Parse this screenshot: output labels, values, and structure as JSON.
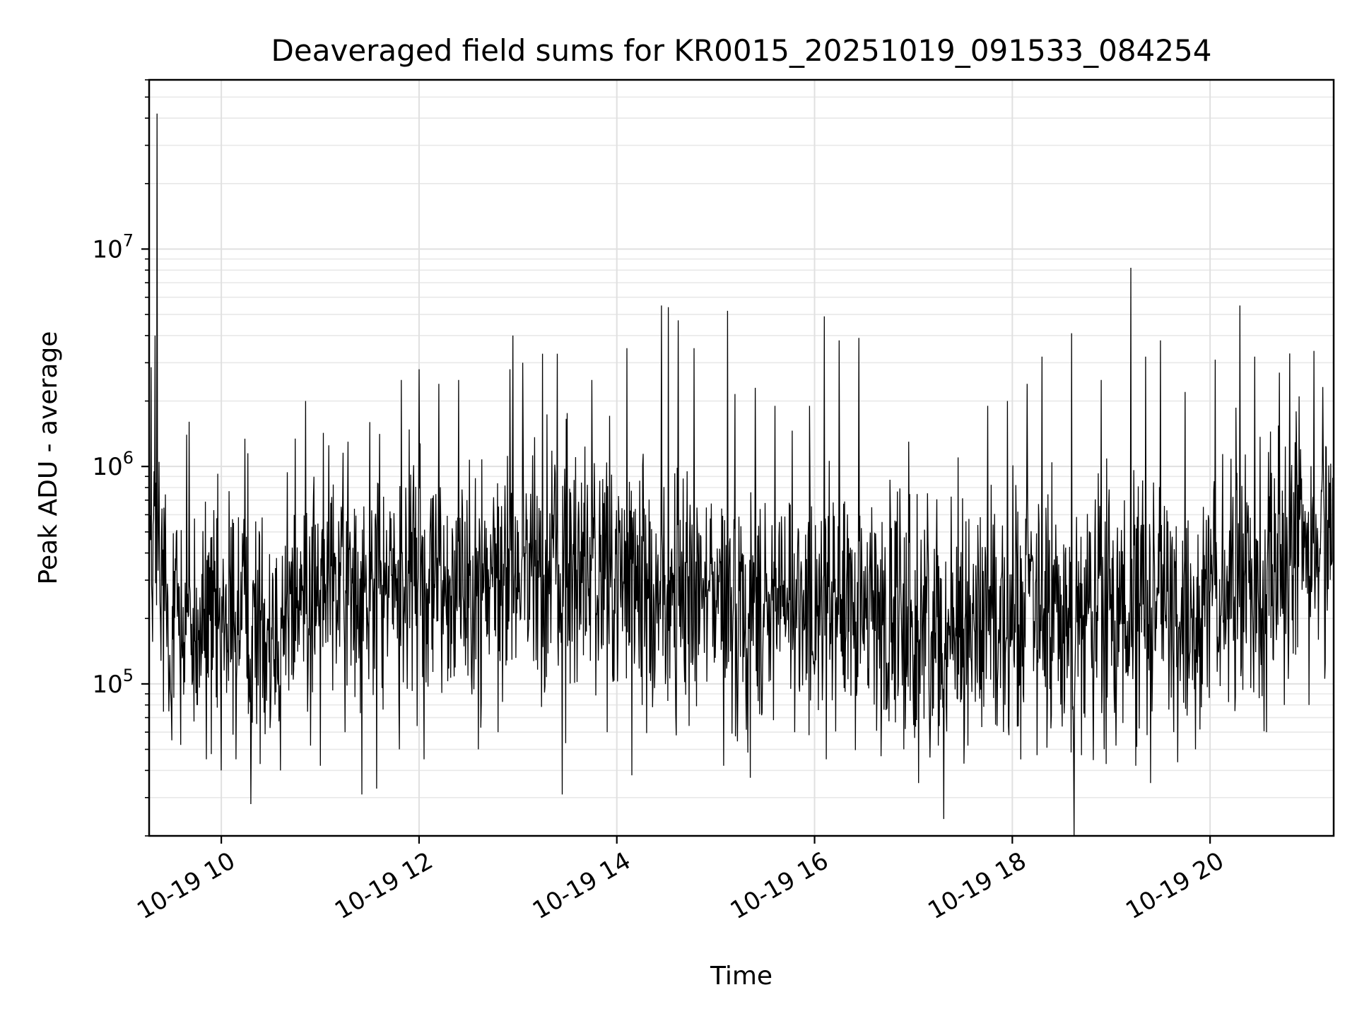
{
  "chart_data": {
    "type": "line",
    "title": "Deaveraged field sums for KR0015_20251019_091533_084254",
    "xlabel": "Time",
    "ylabel": "Peak ADU - average",
    "yscale": "log",
    "xlim": [
      9.27,
      21.25
    ],
    "ylim": [
      20000,
      60000000
    ],
    "grid": true,
    "legend": "none",
    "line_color": "#000000",
    "x_ticks": [
      {
        "value": 10,
        "label": "10-19 10"
      },
      {
        "value": 12,
        "label": "10-19 12"
      },
      {
        "value": 14,
        "label": "10-19 14"
      },
      {
        "value": 16,
        "label": "10-19 16"
      },
      {
        "value": 18,
        "label": "10-19 18"
      },
      {
        "value": 20,
        "label": "10-19 20"
      }
    ],
    "y_major_ticks": [
      {
        "value": 100000,
        "base": "10",
        "exp": "5"
      },
      {
        "value": 1000000,
        "base": "10",
        "exp": "6"
      },
      {
        "value": 10000000,
        "base": "10",
        "exp": "7"
      }
    ],
    "series": [
      {
        "name": "Peak ADU - average",
        "description": "dense noisy time series, sampled envelope",
        "baseline": [
          [
            9.27,
            450000
          ],
          [
            9.5,
            200000
          ],
          [
            10.0,
            180000
          ],
          [
            10.5,
            200000
          ],
          [
            11.0,
            280000
          ],
          [
            11.5,
            290000
          ],
          [
            12.0,
            320000
          ],
          [
            12.5,
            300000
          ],
          [
            13.0,
            330000
          ],
          [
            13.5,
            340000
          ],
          [
            14.0,
            300000
          ],
          [
            14.5,
            250000
          ],
          [
            15.0,
            240000
          ],
          [
            15.5,
            230000
          ],
          [
            16.0,
            230000
          ],
          [
            16.5,
            220000
          ],
          [
            17.0,
            180000
          ],
          [
            17.5,
            180000
          ],
          [
            18.0,
            210000
          ],
          [
            18.5,
            190000
          ],
          [
            19.0,
            200000
          ],
          [
            19.5,
            200000
          ],
          [
            20.0,
            220000
          ],
          [
            20.5,
            350000
          ],
          [
            21.0,
            450000
          ],
          [
            21.25,
            520000
          ]
        ],
        "spikes": [
          [
            9.35,
            42000000
          ],
          [
            9.33,
            4000000
          ],
          [
            9.32,
            950000
          ],
          [
            9.65,
            1400000
          ],
          [
            10.27,
            1150000
          ],
          [
            10.6,
            1100000
          ],
          [
            10.85,
            2000000
          ],
          [
            11.0,
            1150000
          ],
          [
            11.28,
            1300000
          ],
          [
            11.5,
            1600000
          ],
          [
            11.82,
            2500000
          ],
          [
            12.0,
            2800000
          ],
          [
            12.2,
            2400000
          ],
          [
            12.4,
            2500000
          ],
          [
            12.6,
            2000000
          ],
          [
            12.92,
            2800000
          ],
          [
            12.95,
            4000000
          ],
          [
            13.05,
            3000000
          ],
          [
            13.25,
            3300000
          ],
          [
            13.4,
            3300000
          ],
          [
            13.75,
            2500000
          ],
          [
            13.9,
            2200000
          ],
          [
            14.1,
            3500000
          ],
          [
            14.45,
            5500000
          ],
          [
            14.52,
            5400000
          ],
          [
            14.62,
            4700000
          ],
          [
            14.78,
            3500000
          ],
          [
            15.12,
            5200000
          ],
          [
            15.4,
            2300000
          ],
          [
            15.6,
            1900000
          ],
          [
            15.95,
            1900000
          ],
          [
            16.1,
            4900000
          ],
          [
            16.25,
            3800000
          ],
          [
            16.45,
            3900000
          ],
          [
            16.95,
            1300000
          ],
          [
            17.45,
            1100000
          ],
          [
            17.75,
            1900000
          ],
          [
            17.95,
            2000000
          ],
          [
            18.15,
            2400000
          ],
          [
            18.3,
            3200000
          ],
          [
            18.6,
            4100000
          ],
          [
            18.9,
            2500000
          ],
          [
            19.05,
            5300000
          ],
          [
            19.2,
            8200000
          ],
          [
            19.35,
            3200000
          ],
          [
            19.5,
            3800000
          ],
          [
            19.75,
            2200000
          ],
          [
            20.05,
            3100000
          ],
          [
            20.25,
            5500000
          ],
          [
            20.3,
            5500000
          ],
          [
            20.45,
            3200000
          ],
          [
            20.7,
            2700000
          ],
          [
            20.9,
            2100000
          ],
          [
            21.05,
            3400000
          ]
        ],
        "dips": [
          [
            9.5,
            55000
          ],
          [
            9.85,
            45000
          ],
          [
            10.0,
            40000
          ],
          [
            10.15,
            45000
          ],
          [
            10.3,
            28000
          ],
          [
            10.6,
            40000
          ],
          [
            10.9,
            52000
          ],
          [
            11.0,
            42000
          ],
          [
            11.25,
            60000
          ],
          [
            11.42,
            31000
          ],
          [
            11.57,
            33000
          ],
          [
            11.8,
            50000
          ],
          [
            12.05,
            45000
          ],
          [
            12.6,
            50000
          ],
          [
            12.8,
            60000
          ],
          [
            13.45,
            31000
          ],
          [
            13.9,
            60000
          ],
          [
            14.15,
            38000
          ],
          [
            14.6,
            58000
          ],
          [
            15.08,
            42000
          ],
          [
            15.35,
            37000
          ],
          [
            15.8,
            60000
          ],
          [
            16.12,
            45000
          ],
          [
            16.9,
            50000
          ],
          [
            17.05,
            35000
          ],
          [
            17.25,
            52000
          ],
          [
            17.55,
            52000
          ],
          [
            18.25,
            47000
          ],
          [
            18.7,
            47000
          ],
          [
            19.05,
            52000
          ],
          [
            19.25,
            42000
          ],
          [
            19.4,
            35000
          ],
          [
            19.85,
            50000
          ],
          [
            20.25,
            75000
          ],
          [
            20.57,
            60000
          ],
          [
            20.75,
            80000
          ],
          [
            21.0,
            80000
          ]
        ]
      }
    ]
  }
}
